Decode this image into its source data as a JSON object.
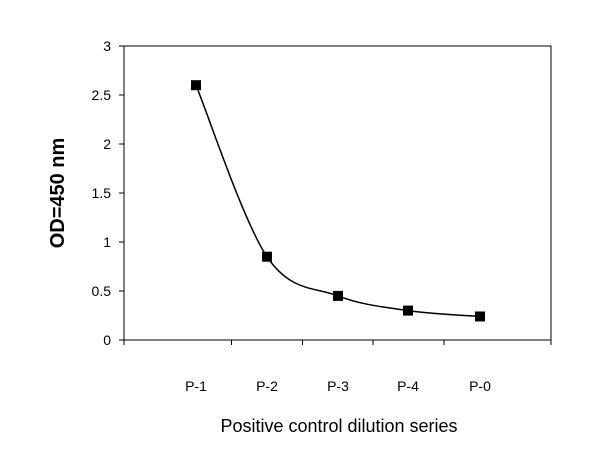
{
  "chart_data": {
    "type": "line",
    "categories": [
      "P-1",
      "P-2",
      "P-3",
      "P-4",
      "P-0"
    ],
    "values": [
      2.6,
      0.85,
      0.45,
      0.3,
      0.24
    ],
    "xlabel": "Positive control dilution series",
    "ylabel": "OD=450 nm",
    "ylim": [
      0,
      3
    ],
    "yticks": [
      "0",
      "0.5",
      "1",
      "1.5",
      "2",
      "2.5",
      "3"
    ],
    "grid": false,
    "legend": false,
    "line_color": "#000000",
    "marker_color": "#000000",
    "marker": "square"
  }
}
